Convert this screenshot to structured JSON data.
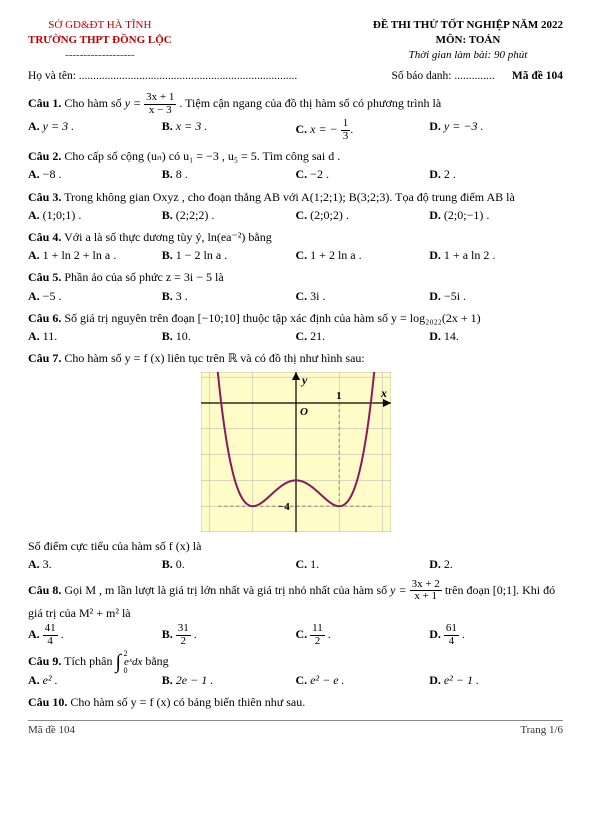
{
  "header": {
    "dept": "SỞ GD&ĐT HÀ TĨNH",
    "school": "TRƯỜNG THPT ĐỒNG LỘC",
    "sep": "-------------------",
    "exam_title": "ĐỀ THI THỬ TỐT NGHIỆP NĂM 2022",
    "subject": "MÔN: TOÁN",
    "time": "Thời gian làm bài: 90 phút",
    "name_label": "Họ và tên: ............................................................................",
    "sbd_label": "Số báo danh: ..............",
    "code_label": "Mã đề 104"
  },
  "q1": {
    "stem_a": "Câu 1.",
    "stem_b": " Cho hàm số ",
    "stem_c": ". Tiệm cận ngang của đồ thị hàm số có phương trình là",
    "y_eq": "y =",
    "frac_n": "3x + 1",
    "frac_d": "x − 3",
    "A": "y = 3 .",
    "B": "x = 3 .",
    "C_pre": "x = −",
    "C_n": "1",
    "C_d": "3",
    "C_post": ".",
    "D": "y = −3 ."
  },
  "q2": {
    "stem_a": "Câu 2.",
    "stem_b": " Cho cấp số cộng (uₙ) có u₁ = −3 , u₅ = 5. Tìm công sai d .",
    "A": "−8 .",
    "B": "8 .",
    "C": "−2 .",
    "D": "2 ."
  },
  "q3": {
    "stem_a": "Câu 3.",
    "stem_b": " Trong không gian Oxyz , cho đoạn thẳng AB với A(1;2;1); B(3;2;3). Tọa độ trung điểm AB là",
    "A": "(1;0;1) .",
    "B": "(2;2;2) .",
    "C": "(2;0;2) .",
    "D": "(2;0;−1) ."
  },
  "q4": {
    "stem_a": "Câu 4.",
    "stem_b": " Với a là số thực dương tùy ý, ln(ea⁻²) bằng",
    "A": "1 + ln 2 + ln a .",
    "B": "1 − 2 ln a .",
    "C": "1 + 2 ln a .",
    "D": "1 + a ln 2 ."
  },
  "q5": {
    "stem_a": "Câu 5.",
    "stem_b": " Phần ảo của số phức z = 3i − 5 là",
    "A": "−5 .",
    "B": "3 .",
    "C": "3i .",
    "D": "−5i ."
  },
  "q6": {
    "stem_a": "Câu 6.",
    "stem_b": " Số giá trị nguyên trên đoạn [−10;10] thuộc tập xác định của hàm số y = log₂₀₂₂(2x + 1)",
    "A": "11.",
    "B": "10.",
    "C": "21.",
    "D": "14."
  },
  "q7": {
    "stem_a": "Câu 7.",
    "stem_b": " Cho hàm số y = f (x) liên tục trên ℝ và có đồ thị như hình sau:",
    "post": "Số điểm cực tiểu của hàm số f (x) là",
    "A": "3.",
    "B": "0.",
    "C": "1.",
    "D": "2."
  },
  "chart": {
    "width": 190,
    "height": 160,
    "bg": "#fffcc8",
    "grid": "#b0b0b0",
    "axis": "#000000",
    "curve": "#8a1a5a",
    "xmin": -2.2,
    "xmax": 2.2,
    "ymin": -5.0,
    "ymax": 1.2,
    "xlabel_x": "x",
    "ylabel_y": "y",
    "origin": "O",
    "ticks_x": [
      1
    ],
    "ticks_y": [
      -4
    ],
    "dash": "#666"
  },
  "q8": {
    "stem_a": "Câu 8.",
    "stem_b": " Gọi M , m lần lượt là giá trị lớn nhất và giá trị nhỏ nhất của hàm số ",
    "stem_y": "y =",
    "frac_n": "3x + 2",
    "frac_d": "x + 1",
    "stem_c": " trên đoạn [0;1]. Khi đó",
    "line2": "giá trị của M² + m² là",
    "A_n": "41",
    "A_d": "4",
    "B_n": "31",
    "B_d": "2",
    "C_n": "11",
    "C_d": "2",
    "D_n": "61",
    "D_d": "4"
  },
  "q9": {
    "stem_a": "Câu 9.",
    "stem_b": " Tích phân ",
    "stem_c": " bằng",
    "int_lb": "0",
    "int_ub": "2",
    "int_body": "eˣdx",
    "A": "e² .",
    "B": "2e − 1 .",
    "C": "e² − e .",
    "D": "e² − 1 ."
  },
  "q10": {
    "stem_a": "Câu 10.",
    "stem_b": " Cho  hàm số y = f (x) có bảng biến thiên như sau."
  },
  "footer": {
    "left": "Mã đề 104",
    "right": "Trang 1/6"
  }
}
